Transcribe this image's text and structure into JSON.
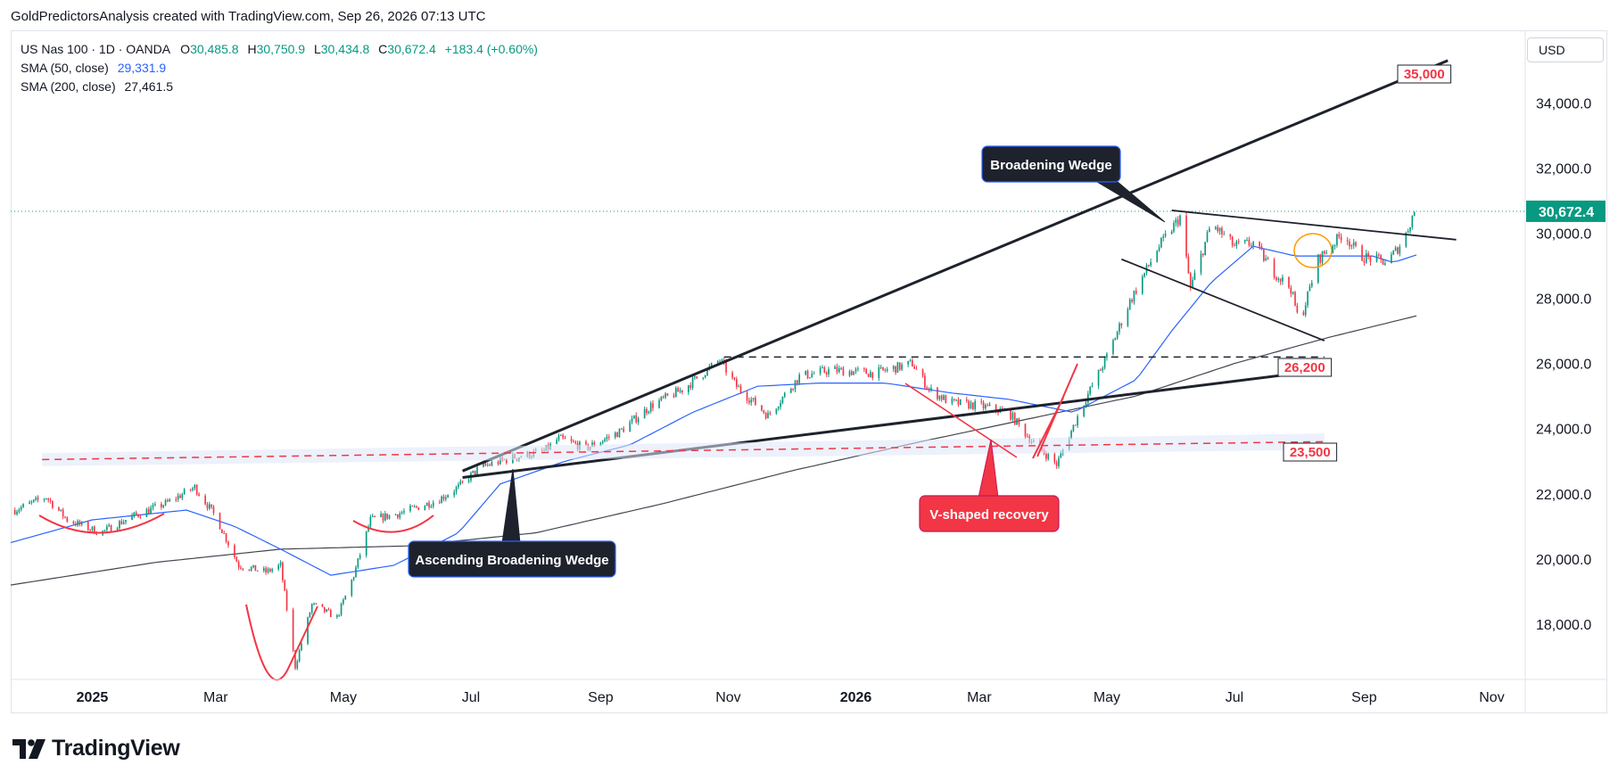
{
  "header": {
    "text": "GoldPredictorsAnalysis created with TradingView.com, Sep 26, 2026 07:13 UTC"
  },
  "legend": {
    "symbol": "US Nas 100 · 1D · OANDA",
    "open_label": "O",
    "open": "30,485.8",
    "high_label": "H",
    "high": "30,750.9",
    "low_label": "L",
    "low": "30,434.8",
    "close_label": "C",
    "close": "30,672.4",
    "change": "+183.4 (+0.60%)",
    "sma50_label": "SMA (50, close)",
    "sma50_value": "29,331.9",
    "sma200_label": "SMA (200, close)",
    "sma200_value": "27,461.5"
  },
  "currency": "USD",
  "footer": {
    "brand": "TradingView"
  },
  "colors": {
    "up": "#089981",
    "down": "#f23645",
    "sma50": "#2962ff",
    "sma200": "#434651",
    "price_badge": "#089981",
    "annotation_red": "#f23645",
    "annotation_dark": "#1e222d"
  },
  "chart_data": {
    "type": "candlestick",
    "symbol": "US Nas 100",
    "interval": "1D",
    "x_tick_labels": [
      "2025",
      "Mar",
      "May",
      "Jul",
      "Sep",
      "Nov",
      "2026",
      "Mar",
      "May",
      "Jul",
      "Sep",
      "Nov"
    ],
    "y_tick_labels": [
      "18,000.0",
      "20,000.0",
      "22,000.0",
      "24,000.0",
      "26,000.0",
      "28,000.0",
      "30,000.0",
      "32,000.0",
      "34,000.0"
    ],
    "ylim": [
      16300,
      36200
    ],
    "xlim": [
      "2024-11-23",
      "2026-11-17"
    ],
    "last_price": 30672.4,
    "last_price_label": "30,672.4",
    "price_path": [
      [
        "2024-11-25",
        21500
      ],
      [
        "2024-12-10",
        21900
      ],
      [
        "2024-12-20",
        21200
      ],
      [
        "2025-01-05",
        20800
      ],
      [
        "2025-01-20",
        21300
      ],
      [
        "2025-02-05",
        21700
      ],
      [
        "2025-02-19",
        22200
      ],
      [
        "2025-03-01",
        21300
      ],
      [
        "2025-03-12",
        19800
      ],
      [
        "2025-03-25",
        19600
      ],
      [
        "2025-04-01",
        19800
      ],
      [
        "2025-04-08",
        16700
      ],
      [
        "2025-04-16",
        18600
      ],
      [
        "2025-04-28",
        18200
      ],
      [
        "2025-05-06",
        19500
      ],
      [
        "2025-05-14",
        21200
      ],
      [
        "2025-05-28",
        21400
      ],
      [
        "2025-06-15",
        21800
      ],
      [
        "2025-06-25",
        22200
      ],
      [
        "2025-07-05",
        22800
      ],
      [
        "2025-07-20",
        23100
      ],
      [
        "2025-08-05",
        23300
      ],
      [
        "2025-08-12",
        23700
      ],
      [
        "2025-08-25",
        23400
      ],
      [
        "2025-09-10",
        23900
      ],
      [
        "2025-09-25",
        24700
      ],
      [
        "2025-10-10",
        25200
      ],
      [
        "2025-10-28",
        26100
      ],
      [
        "2025-11-05",
        25300
      ],
      [
        "2025-11-20",
        24400
      ],
      [
        "2025-12-05",
        25600
      ],
      [
        "2025-12-20",
        25800
      ],
      [
        "2026-01-10",
        25700
      ],
      [
        "2026-01-28",
        26000
      ],
      [
        "2026-02-05",
        25200
      ],
      [
        "2026-02-15",
        24800
      ],
      [
        "2026-03-01",
        24700
      ],
      [
        "2026-03-15",
        24500
      ],
      [
        "2026-03-25",
        23700
      ],
      [
        "2026-04-07",
        22900
      ],
      [
        "2026-04-20",
        24800
      ],
      [
        "2026-05-01",
        26200
      ],
      [
        "2026-05-12",
        27900
      ],
      [
        "2026-05-25",
        29500
      ],
      [
        "2026-06-05",
        30500
      ],
      [
        "2026-06-10",
        28300
      ],
      [
        "2026-06-20",
        30300
      ],
      [
        "2026-07-01",
        29600
      ],
      [
        "2026-07-10",
        29700
      ],
      [
        "2026-07-20",
        28800
      ],
      [
        "2026-07-28",
        28300
      ],
      [
        "2026-08-01",
        27200
      ],
      [
        "2026-08-10",
        29200
      ],
      [
        "2026-08-22",
        30000
      ],
      [
        "2026-08-30",
        29300
      ],
      [
        "2026-09-12",
        29100
      ],
      [
        "2026-09-20",
        29800
      ],
      [
        "2026-09-25",
        30672
      ]
    ],
    "sma50_path": [
      [
        "2024-11-23",
        20500
      ],
      [
        "2025-01-01",
        21200
      ],
      [
        "2025-02-15",
        21500
      ],
      [
        "2025-03-10",
        21000
      ],
      [
        "2025-04-01",
        20300
      ],
      [
        "2025-04-25",
        19500
      ],
      [
        "2025-05-25",
        19800
      ],
      [
        "2025-06-25",
        20800
      ],
      [
        "2025-07-15",
        22300
      ],
      [
        "2025-08-15",
        23000
      ],
      [
        "2025-09-15",
        23500
      ],
      [
        "2025-10-15",
        24500
      ],
      [
        "2025-11-15",
        25300
      ],
      [
        "2025-12-15",
        25400
      ],
      [
        "2026-01-15",
        25400
      ],
      [
        "2026-02-15",
        25100
      ],
      [
        "2026-03-15",
        24900
      ],
      [
        "2026-04-15",
        24500
      ],
      [
        "2026-05-15",
        25500
      ],
      [
        "2026-06-01",
        27000
      ],
      [
        "2026-06-20",
        28500
      ],
      [
        "2026-07-10",
        29600
      ],
      [
        "2026-07-30",
        29300
      ],
      [
        "2026-08-20",
        29300
      ],
      [
        "2026-09-05",
        29300
      ],
      [
        "2026-09-15",
        29100
      ],
      [
        "2026-09-26",
        29331.9
      ]
    ],
    "sma200_path": [
      [
        "2024-11-23",
        19200
      ],
      [
        "2025-02-01",
        19900
      ],
      [
        "2025-04-01",
        20300
      ],
      [
        "2025-06-01",
        20400
      ],
      [
        "2025-08-01",
        20800
      ],
      [
        "2025-10-01",
        21700
      ],
      [
        "2025-12-01",
        22700
      ],
      [
        "2026-02-01",
        23600
      ],
      [
        "2026-04-01",
        24400
      ],
      [
        "2026-05-15",
        25000
      ],
      [
        "2026-07-01",
        26000
      ],
      [
        "2026-08-15",
        26800
      ],
      [
        "2026-09-26",
        27461.5
      ]
    ],
    "annotations": [
      {
        "type": "trendline",
        "label": "Ascending Broadening Wedge upper line",
        "from": [
          "2025-06-27",
          22700
        ],
        "to": [
          "2026-10-11",
          35300
        ]
      },
      {
        "type": "trendline",
        "label": "Ascending Broadening Wedge lower line",
        "from": [
          "2025-06-27",
          22500
        ],
        "to": [
          "2026-08-13",
          25800
        ]
      },
      {
        "type": "trendline",
        "label": "Broadening Wedge upper line",
        "from": [
          "2026-06-01",
          30700
        ],
        "to": [
          "2026-10-15",
          29800
        ]
      },
      {
        "type": "trendline",
        "label": "Broadening Wedge lower line",
        "from": [
          "2026-05-08",
          29200
        ],
        "to": [
          "2026-08-13",
          26700
        ]
      },
      {
        "type": "hline_dashed",
        "label": "26,200",
        "from": "2025-10-30",
        "to": "2026-08-13",
        "value": 26200
      },
      {
        "type": "hline_dashed",
        "label": "23,500",
        "from": "2024-12-08",
        "to": "2026-08-13",
        "value": 23500
      },
      {
        "type": "text",
        "text": "35,000"
      },
      {
        "type": "text",
        "text": "26,200"
      },
      {
        "type": "text",
        "text": "23,500"
      },
      {
        "type": "callout",
        "text": "Broadening Wedge"
      },
      {
        "type": "callout",
        "text": "Ascending Broadening Wedge"
      },
      {
        "type": "callout",
        "text": "V-shaped recovery"
      }
    ]
  }
}
